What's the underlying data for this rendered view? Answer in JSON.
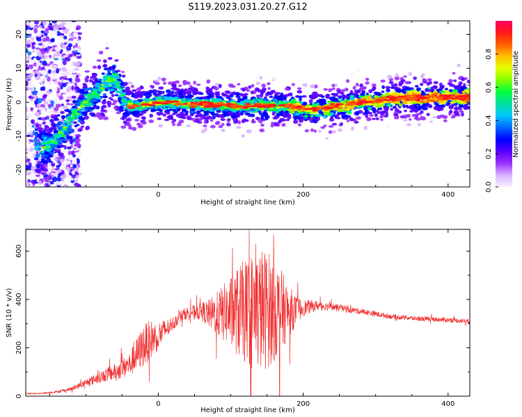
{
  "title": "S119.2023.031.20.27.G12",
  "chart_data": [
    {
      "type": "heatmap",
      "xlabel": "Height of straight line (km)",
      "ylabel": "Frequency (Hz)",
      "xlim": [
        -183,
        430
      ],
      "ylim": [
        -25,
        24
      ],
      "xticks": [
        0,
        200,
        400
      ],
      "yticks": [
        -20,
        -10,
        0,
        10,
        20
      ],
      "grid": false,
      "ridge": {
        "x": [
          -150,
          -140,
          -130,
          -120,
          -110,
          -100,
          -90,
          -80,
          -70,
          -60,
          -50,
          -45,
          -30,
          0,
          50,
          100,
          150,
          180,
          200,
          220,
          240,
          260,
          280,
          300,
          320,
          350,
          400,
          430
        ],
        "y": [
          -13,
          -10,
          -8,
          -5,
          -2,
          0,
          2,
          4,
          6,
          7,
          2,
          -1,
          -1,
          0,
          -0.5,
          -1,
          -1,
          -1,
          -2,
          -2,
          -1.5,
          -1,
          0,
          0.5,
          1,
          1.3,
          1.5,
          1.5
        ]
      },
      "colorbar": {
        "label": "Normalized spectral amplitude",
        "range": [
          0,
          1
        ],
        "ticks": [
          0.0,
          0.2,
          0.4,
          0.6,
          0.8
        ],
        "colors": [
          "#f7f0ff",
          "#d9b3ff",
          "#9b30ff",
          "#5a00ff",
          "#0000ff",
          "#0066ff",
          "#00c8ff",
          "#00e0a0",
          "#00ff40",
          "#80ff00",
          "#e6ff00",
          "#ffc000",
          "#ff6000",
          "#ff1a1a",
          "#ff0060"
        ]
      }
    },
    {
      "type": "line",
      "xlabel": "Height of straight line (km)",
      "ylabel": "SNR (10 * v/v)",
      "xlim": [
        -183,
        430
      ],
      "ylim": [
        0,
        690
      ],
      "xticks": [
        0,
        200,
        400
      ],
      "yticks": [
        0,
        200,
        400,
        600
      ],
      "grid": false,
      "color": "#f03030",
      "series": [
        {
          "x": [
            -183,
            -160,
            -140,
            -120,
            -100,
            -80,
            -60,
            -40,
            -30,
            -20,
            -10,
            0,
            10,
            20,
            30,
            40,
            50,
            60,
            70,
            80,
            90,
            100,
            110,
            120,
            130,
            140,
            150,
            160,
            170,
            180,
            190,
            200,
            220,
            240,
            260,
            280,
            300,
            320,
            340,
            360,
            380,
            400,
            420,
            430
          ],
          "y": [
            10,
            12,
            18,
            30,
            55,
            80,
            100,
            130,
            170,
            210,
            235,
            250,
            275,
            300,
            330,
            345,
            350,
            350,
            340,
            340,
            345,
            345,
            350,
            350,
            350,
            355,
            360,
            360,
            355,
            350,
            355,
            365,
            375,
            370,
            360,
            350,
            340,
            330,
            325,
            320,
            318,
            315,
            312,
            310
          ],
          "spread": [
            2,
            3,
            5,
            8,
            15,
            25,
            35,
            50,
            70,
            90,
            80,
            60,
            45,
            30,
            25,
            25,
            30,
            40,
            60,
            90,
            120,
            150,
            190,
            220,
            250,
            260,
            250,
            220,
            170,
            110,
            60,
            35,
            20,
            15,
            15,
            12,
            12,
            10,
            10,
            10,
            10,
            10,
            10,
            10
          ]
        }
      ]
    }
  ]
}
